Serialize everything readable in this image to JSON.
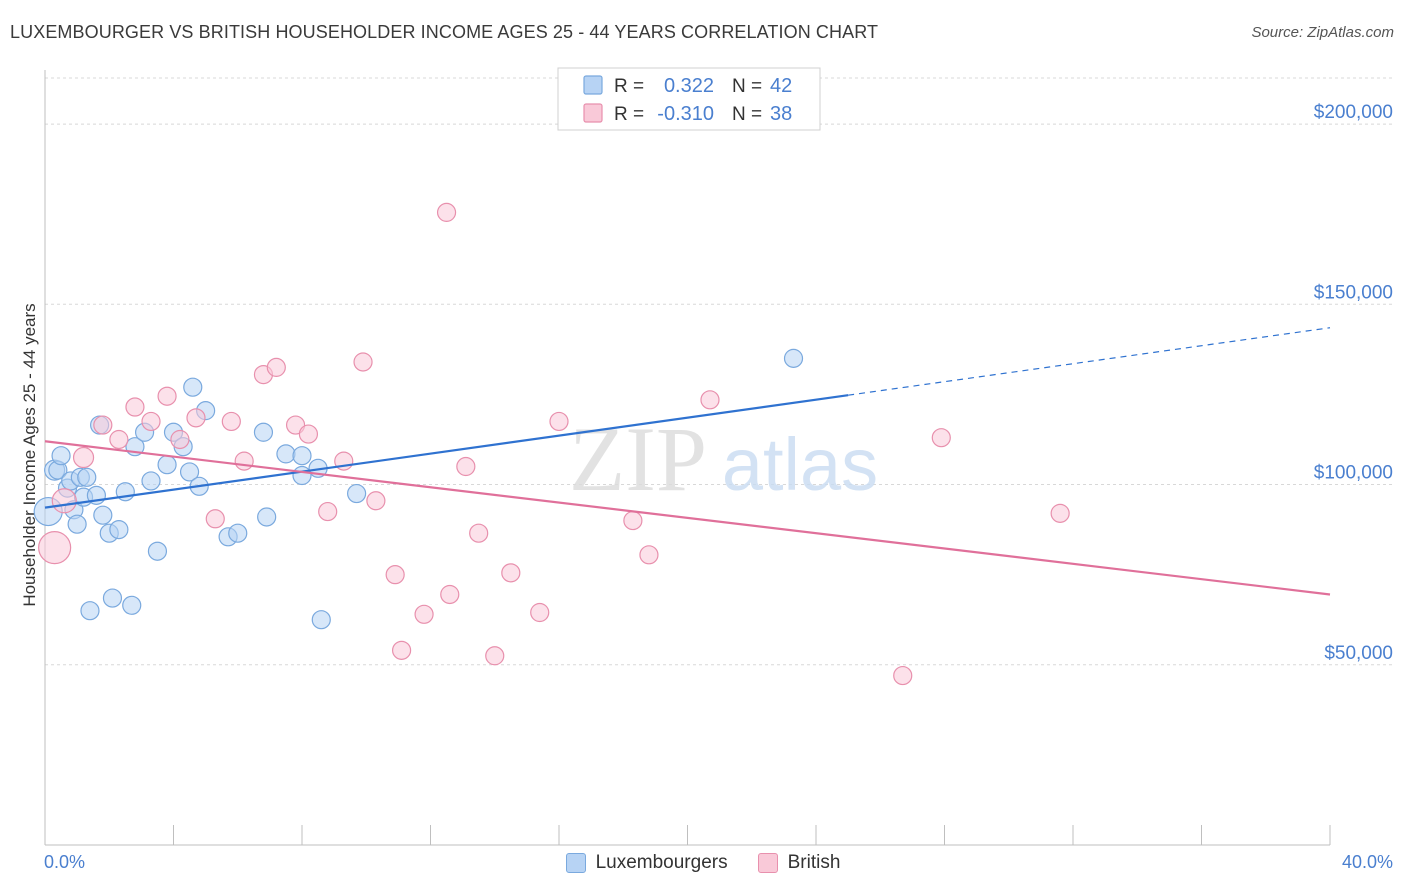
{
  "title": "LUXEMBOURGER VS BRITISH HOUSEHOLDER INCOME AGES 25 - 44 YEARS CORRELATION CHART",
  "source": "Source: ZipAtlas.com",
  "watermark": {
    "zip": "ZIP",
    "atlas": "atlas"
  },
  "legend_box": {
    "rows": [
      {
        "r_label": "R =",
        "r_value": "0.322",
        "n_label": "N =",
        "n_value": "42"
      },
      {
        "r_label": "R =",
        "r_value": "-0.310",
        "n_label": "N =",
        "n_value": "38"
      }
    ]
  },
  "bottom_legend": {
    "series1": "Luxembourgers",
    "series2": "British"
  },
  "colors": {
    "blue_fill": "#b7d3f4",
    "blue_stroke": "#7aa9de",
    "blue_line": "#2f72d0",
    "pink_fill": "#f9c9d8",
    "pink_stroke": "#e890ad",
    "pink_line": "#e0709a",
    "axis_text": "#4a7fcf"
  },
  "chart_data": {
    "type": "scatter",
    "title": "LUXEMBOURGER VS BRITISH HOUSEHOLDER INCOME AGES 25 - 44 YEARS CORRELATION CHART",
    "xlabel": "",
    "ylabel": "Householder Income Ages 25 - 44 years",
    "xlim": [
      0,
      40
    ],
    "ylim": [
      0,
      215000
    ],
    "x_tick_labels": [
      "0.0%",
      "40.0%"
    ],
    "y_ticks": [
      50000,
      100000,
      150000,
      200000
    ],
    "y_tick_labels": [
      "$50,000",
      "$100,000",
      "$150,000",
      "$200,000"
    ],
    "grid": true,
    "legend": "top-center",
    "series": [
      {
        "name": "Luxembourgers",
        "r": 0.322,
        "n": 42,
        "trend": {
          "x0": 0,
          "y0": 93600,
          "x_solid_end": 25.0,
          "x1": 40,
          "y1": 143500
        },
        "points": [
          [
            0.1,
            92500,
            14
          ],
          [
            0.3,
            104000,
            10
          ],
          [
            0.4,
            104000,
            9
          ],
          [
            0.5,
            108000,
            9
          ],
          [
            0.7,
            99000,
            9
          ],
          [
            0.8,
            101000,
            9
          ],
          [
            0.9,
            93000,
            9
          ],
          [
            1.0,
            89000,
            9
          ],
          [
            1.1,
            102000,
            9
          ],
          [
            1.2,
            96500,
            9
          ],
          [
            1.3,
            102000,
            9
          ],
          [
            1.4,
            65000,
            9
          ],
          [
            1.6,
            97000,
            9
          ],
          [
            1.7,
            116500,
            9
          ],
          [
            1.8,
            91500,
            9
          ],
          [
            2.0,
            86500,
            9
          ],
          [
            2.1,
            68500,
            9
          ],
          [
            2.3,
            87500,
            9
          ],
          [
            2.5,
            98000,
            9
          ],
          [
            2.7,
            66500,
            9
          ],
          [
            2.8,
            110500,
            9
          ],
          [
            3.1,
            114500,
            9
          ],
          [
            3.3,
            101000,
            9
          ],
          [
            3.5,
            81500,
            9
          ],
          [
            3.8,
            105500,
            9
          ],
          [
            4.0,
            114500,
            9
          ],
          [
            4.3,
            110500,
            9
          ],
          [
            4.5,
            103500,
            9
          ],
          [
            4.6,
            127000,
            9
          ],
          [
            4.8,
            99500,
            9
          ],
          [
            5.0,
            120500,
            9
          ],
          [
            5.7,
            85500,
            9
          ],
          [
            6.0,
            86500,
            9
          ],
          [
            6.8,
            114500,
            9
          ],
          [
            6.9,
            91000,
            9
          ],
          [
            7.5,
            108500,
            9
          ],
          [
            8.0,
            102500,
            9
          ],
          [
            8.0,
            108000,
            9
          ],
          [
            8.5,
            104500,
            9
          ],
          [
            8.6,
            62500,
            9
          ],
          [
            9.7,
            97500,
            9
          ],
          [
            23.3,
            135000,
            9
          ]
        ]
      },
      {
        "name": "British",
        "r": -0.31,
        "n": 38,
        "trend": {
          "x0": 0,
          "y0": 112000,
          "x1": 40,
          "y1": 69500
        },
        "points": [
          [
            0.3,
            82500,
            16
          ],
          [
            0.6,
            95500,
            12
          ],
          [
            1.2,
            107500,
            10
          ],
          [
            1.8,
            116500,
            9
          ],
          [
            2.3,
            112500,
            9
          ],
          [
            2.8,
            121500,
            9
          ],
          [
            3.3,
            117500,
            9
          ],
          [
            3.8,
            124500,
            9
          ],
          [
            4.2,
            112500,
            9
          ],
          [
            4.7,
            118500,
            9
          ],
          [
            5.3,
            90500,
            9
          ],
          [
            5.8,
            117500,
            9
          ],
          [
            6.2,
            106500,
            9
          ],
          [
            6.8,
            130500,
            9
          ],
          [
            7.2,
            132500,
            9
          ],
          [
            7.8,
            116500,
            9
          ],
          [
            8.2,
            114000,
            9
          ],
          [
            8.8,
            92500,
            9
          ],
          [
            9.3,
            106500,
            9
          ],
          [
            9.9,
            134000,
            9
          ],
          [
            10.3,
            95500,
            9
          ],
          [
            10.9,
            75000,
            9
          ],
          [
            11.1,
            54000,
            9
          ],
          [
            11.8,
            64000,
            9
          ],
          [
            12.5,
            175500,
            9
          ],
          [
            12.6,
            69500,
            9
          ],
          [
            13.1,
            105000,
            9
          ],
          [
            13.5,
            86500,
            9
          ],
          [
            14.0,
            52500,
            9
          ],
          [
            14.5,
            75500,
            9
          ],
          [
            15.4,
            64500,
            9
          ],
          [
            16.0,
            117500,
            9
          ],
          [
            18.3,
            90000,
            9
          ],
          [
            18.8,
            80500,
            9
          ],
          [
            20.7,
            123500,
            9
          ],
          [
            26.7,
            47000,
            9
          ],
          [
            27.9,
            113000,
            9
          ],
          [
            31.6,
            92000,
            9
          ]
        ]
      }
    ]
  }
}
